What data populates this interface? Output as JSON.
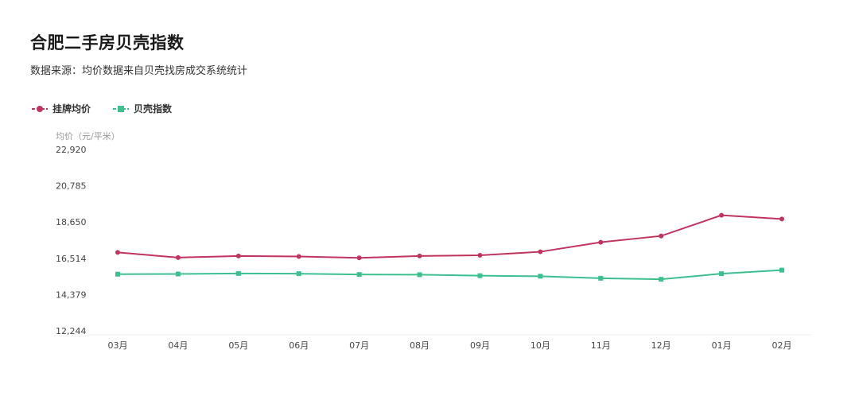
{
  "title": "合肥二手房贝壳指数",
  "subtitle": "数据来源：均价数据来自贝壳找房成交系统统计",
  "colors": {
    "series1": "#c0355f",
    "series2": "#3dbf8f"
  },
  "chart_data": {
    "type": "line",
    "title": "合肥二手房贝壳指数",
    "subtitle": "数据来源：均价数据来自贝壳找房成交系统统计",
    "ylabel": "均价（元/平米）",
    "xlabel": "",
    "categories": [
      "03月",
      "04月",
      "05月",
      "06月",
      "07月",
      "08月",
      "09月",
      "10月",
      "11月",
      "12月",
      "01月",
      "02月"
    ],
    "yticks": [
      "12,244",
      "14,379",
      "16,514",
      "18,650",
      "20,785",
      "22,920"
    ],
    "ylim": [
      12244,
      22920
    ],
    "grid": false,
    "legend_position": "top-left",
    "series": [
      {
        "name": "挂牌均价",
        "marker": "circle",
        "values": [
          16860,
          16560,
          16650,
          16620,
          16540,
          16650,
          16690,
          16900,
          17460,
          17830,
          19050,
          18830
        ]
      },
      {
        "name": "贝壳指数",
        "marker": "square",
        "values": [
          15580,
          15590,
          15620,
          15610,
          15560,
          15550,
          15490,
          15460,
          15340,
          15280,
          15610,
          15820
        ]
      }
    ]
  }
}
